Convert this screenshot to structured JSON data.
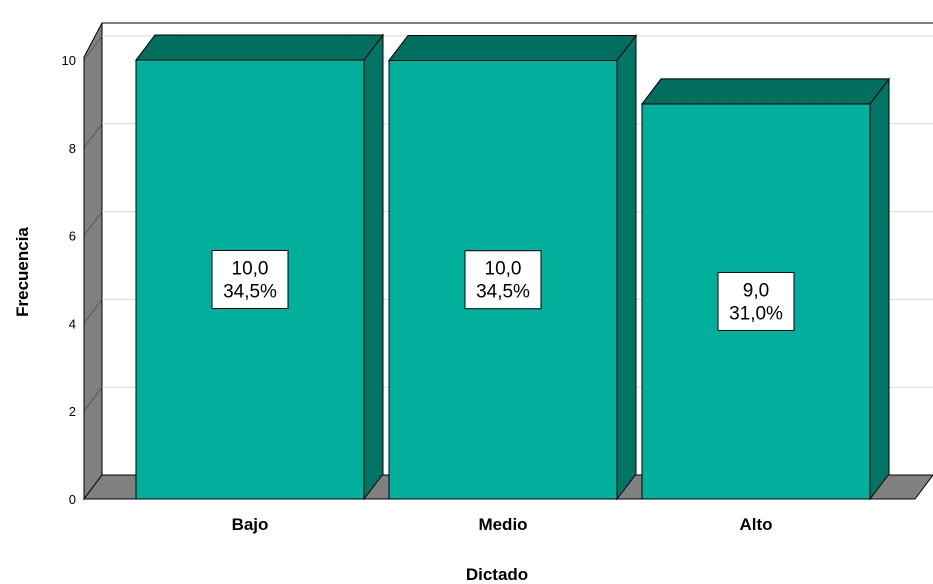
{
  "chart_data": {
    "type": "bar",
    "categories": [
      "Bajo",
      "Medio",
      "Alto"
    ],
    "values": [
      10,
      9.99,
      9
    ],
    "value_labels": [
      "10,0",
      "10,0",
      "9,0"
    ],
    "percent_labels": [
      "34,5%",
      "34,5%",
      "31,0%"
    ],
    "xlabel": "Dictado",
    "ylabel": "Frecuencia",
    "ylim": [
      0,
      10
    ],
    "yticks": [
      "0",
      "2",
      "4",
      "6",
      "8",
      "10"
    ],
    "grid": true,
    "bar_color": "#00B09C",
    "bar_side_color": "#007565",
    "bar_top_color": "#006F60",
    "wall_color": "#808080"
  }
}
